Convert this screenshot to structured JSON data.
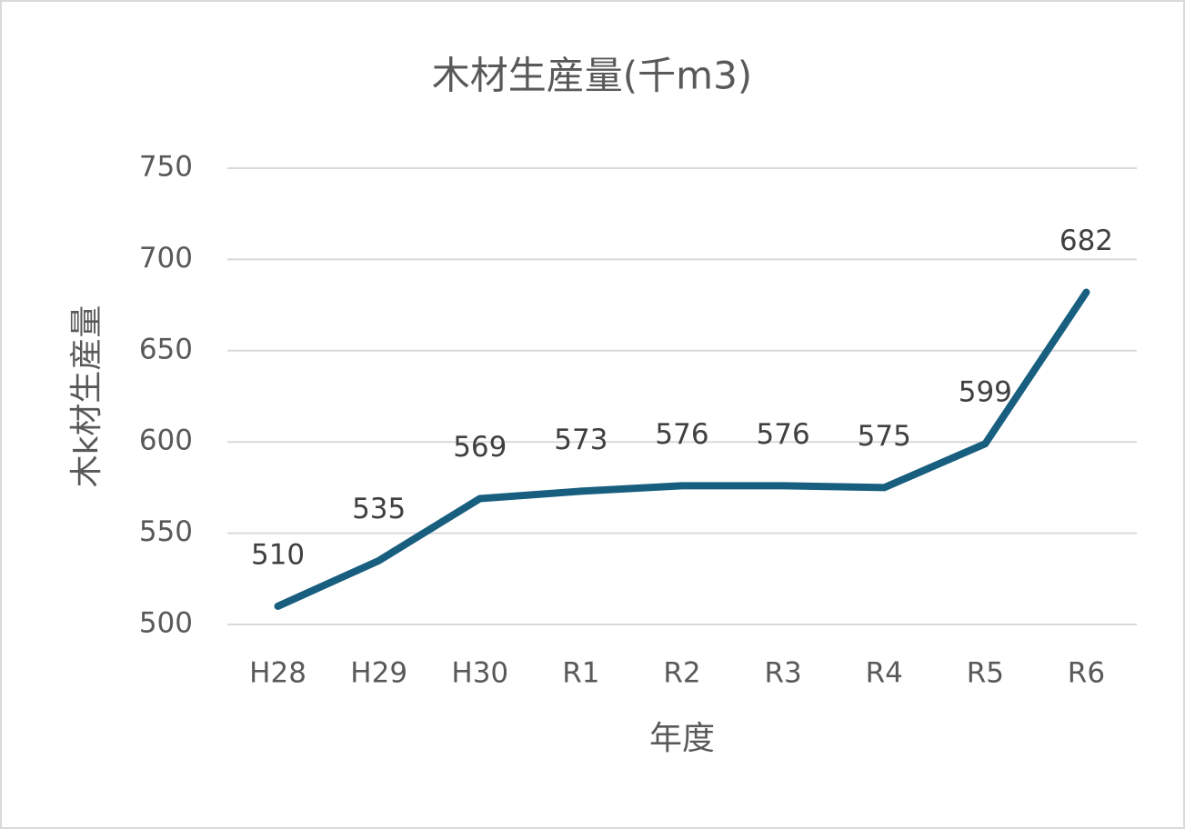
{
  "chart_data": {
    "type": "line",
    "title": "木材生産量(千m3)",
    "y_label": "木k材生産量",
    "x_label": "年度",
    "categories": [
      "H28",
      "H29",
      "H30",
      "R1",
      "R2",
      "R3",
      "R4",
      "R5",
      "R6"
    ],
    "series": [
      {
        "name": "木材生産量",
        "color": "#175e7f",
        "values": [
          510,
          535,
          569,
          573,
          576,
          576,
          575,
          599,
          682
        ]
      }
    ],
    "ylim": [
      500,
      750
    ],
    "yticks": [
      500,
      550,
      600,
      650,
      700,
      750
    ],
    "grid": true,
    "data_labels": true
  }
}
